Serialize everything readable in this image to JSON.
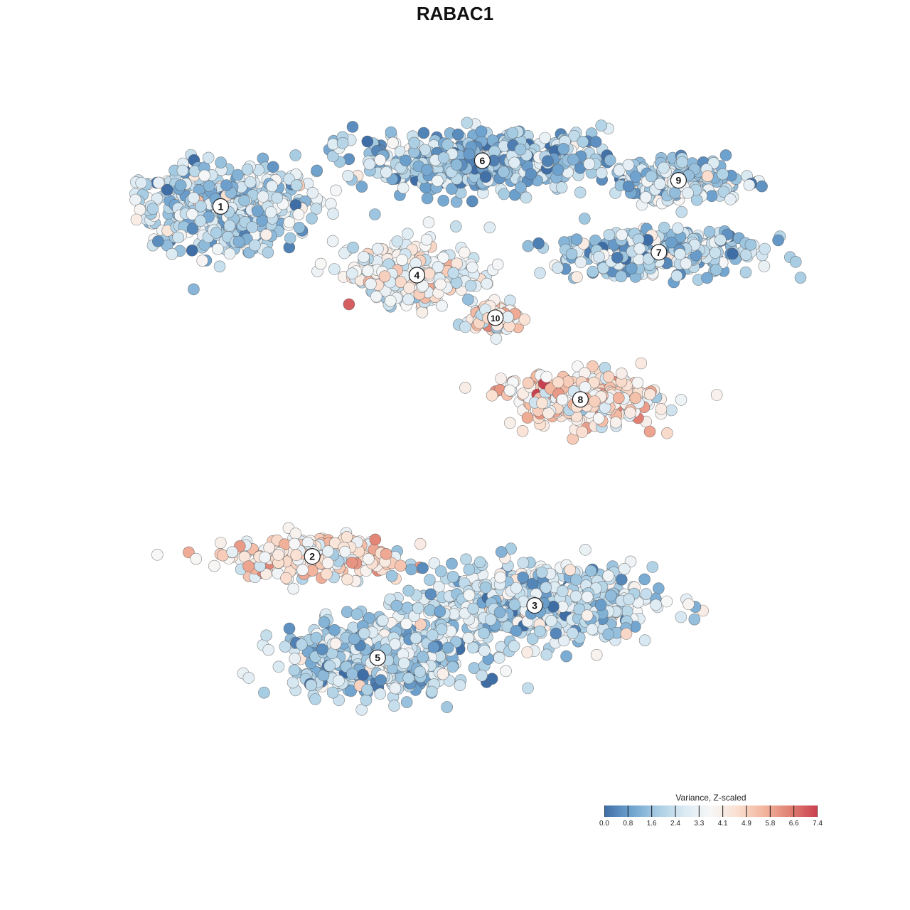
{
  "chart_data": {
    "type": "scatter",
    "title": "RABAC1",
    "legend": {
      "title": "Variance, Z-scaled",
      "placement": "bottom-right",
      "range": [
        0,
        7.4
      ],
      "ticks": [
        "0.0",
        "0.8",
        "1.6",
        "2.4",
        "3.3",
        "4.1",
        "4.9",
        "5.8",
        "6.6",
        "7.4"
      ],
      "colors": [
        "#3f6ea6",
        "#6fa3cf",
        "#a8cde3",
        "#dbeaf3",
        "#f7f7f7",
        "#fadfd0",
        "#f2b49c",
        "#e07f72",
        "#c9404f"
      ]
    },
    "clusters": [
      {
        "label": "1",
        "x": 0.12,
        "y": 0.76,
        "spread": [
          0.16,
          0.14
        ],
        "level": 2.2
      },
      {
        "label": "2",
        "x": 0.26,
        "y": -0.31,
        "spread": [
          0.14,
          0.07
        ],
        "level": 4.2
      },
      {
        "label": "3",
        "x": 0.6,
        "y": -0.46,
        "spread": [
          0.2,
          0.13
        ],
        "level": 2.3
      },
      {
        "label": "4",
        "x": 0.42,
        "y": 0.55,
        "spread": [
          0.11,
          0.1
        ],
        "level": 3.4
      },
      {
        "label": "5",
        "x": 0.36,
        "y": -0.62,
        "spread": [
          0.16,
          0.12
        ],
        "level": 1.9
      },
      {
        "label": "6",
        "x": 0.52,
        "y": 0.9,
        "spread": [
          0.21,
          0.1
        ],
        "level": 1.7
      },
      {
        "label": "7",
        "x": 0.79,
        "y": 0.62,
        "spread": [
          0.17,
          0.08
        ],
        "level": 2.0
      },
      {
        "label": "8",
        "x": 0.67,
        "y": 0.17,
        "spread": [
          0.13,
          0.09
        ],
        "level": 4.3
      },
      {
        "label": "9",
        "x": 0.82,
        "y": 0.84,
        "spread": [
          0.11,
          0.07
        ],
        "level": 2.1
      },
      {
        "label": "10",
        "x": 0.54,
        "y": 0.42,
        "spread": [
          0.04,
          0.05
        ],
        "level": 4.0
      }
    ],
    "grid": false,
    "axes_visible": false
  }
}
